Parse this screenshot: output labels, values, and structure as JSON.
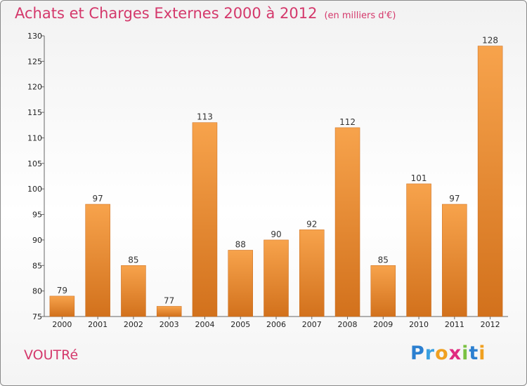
{
  "title": "Achats et Charges Externes 2000 à 2012",
  "unit": "(en milliers d'€)",
  "place": "VOUTRé",
  "logo": {
    "letters": [
      "P",
      "r",
      "o",
      "x",
      "i",
      "t",
      "i"
    ],
    "colors": [
      "#2b7fd0",
      "#3aa0e0",
      "#f0a020",
      "#e02b7f",
      "#7ac142",
      "#2b7fd0",
      "#f0a020"
    ]
  },
  "colors": {
    "bar_top": "#f7a34c",
    "bar_bottom": "#d2711c",
    "accent": "#d4386b"
  },
  "chart_data": {
    "type": "bar",
    "categories": [
      "2000",
      "2001",
      "2002",
      "2003",
      "2004",
      "2005",
      "2006",
      "2007",
      "2008",
      "2009",
      "2010",
      "2011",
      "2012"
    ],
    "values": [
      79,
      97,
      85,
      77,
      113,
      88,
      90,
      92,
      112,
      85,
      101,
      97,
      128
    ],
    "ylim": [
      75,
      130
    ],
    "yticks": [
      75,
      80,
      85,
      90,
      95,
      100,
      105,
      110,
      115,
      120,
      125,
      130
    ],
    "grid": false,
    "legend": "none"
  }
}
